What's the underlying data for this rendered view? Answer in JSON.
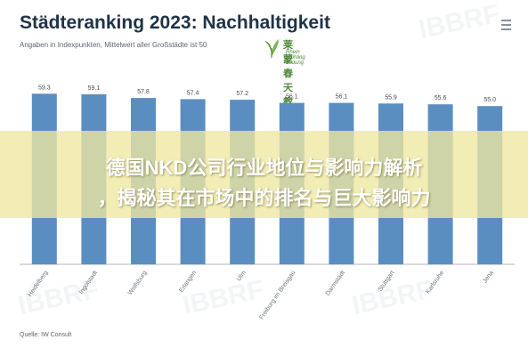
{
  "header": {
    "title": "Städteranking 2023: Nachhaltigkeit",
    "subtitle": "Angaben in Indexpunkten, Mittelwert aller Großstädte ist 50"
  },
  "logo": {
    "cn_text": "莱蒙春天教育",
    "en_text": "Rhein Frühling Bildung",
    "icon": "leaf-icon"
  },
  "menu": {
    "icon": "hamburger-menu-icon"
  },
  "banner": {
    "line1": "德国NKD公司行业地位与影响力解析",
    "line2": "，揭秘其在市场中的排名与巨大影响力"
  },
  "footer": {
    "source": "Quelle: IW Consult"
  },
  "watermark": {
    "text": "IBBRF"
  },
  "colors": {
    "bar": "#5b8ec0",
    "title": "#1f3347",
    "label": "#4a4a4a",
    "banner": "#eee8a0"
  },
  "chart_data": {
    "type": "bar",
    "title": "Städteranking 2023: Nachhaltigkeit",
    "subtitle": "Angaben in Indexpunkten, Mittelwert aller Großstädte ist 50",
    "categories": [
      "Heidelberg",
      "Ingolstadt",
      "Wolfsburg",
      "Erlangen",
      "Ulm",
      "Freiburg im Breisgau",
      "Darmstadt",
      "Stuttgart",
      "Karlsruhe",
      "Jena"
    ],
    "values": [
      59.3,
      59.1,
      57.8,
      57.4,
      57.2,
      56.1,
      56.1,
      55.9,
      55.6,
      55.0
    ],
    "ylim": [
      0,
      60
    ],
    "grid": false,
    "xlabel": "",
    "ylabel": ""
  }
}
